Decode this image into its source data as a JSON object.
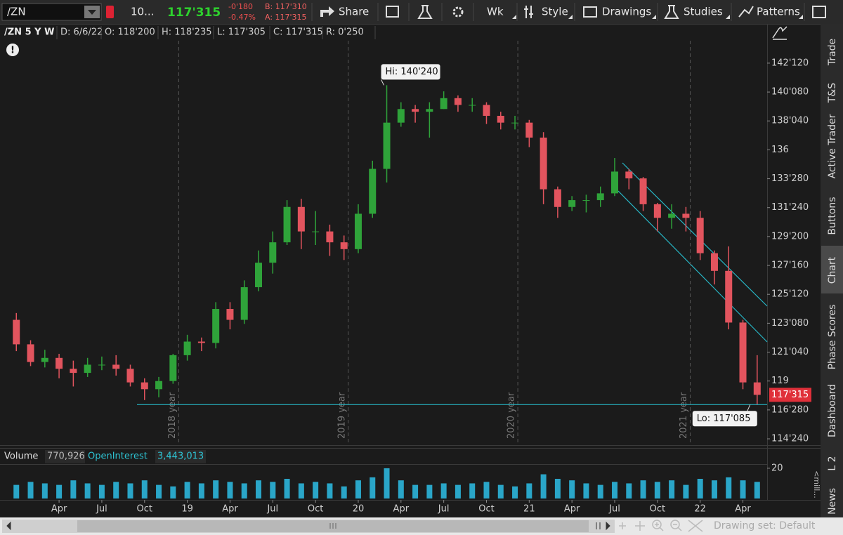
{
  "toolbar": {
    "symbol": "/ZN",
    "qty": "10...",
    "last": "117'315",
    "change": "-0'180",
    "change_pct": "-0.47%",
    "bid": "B: 117'310",
    "ask": "A: 117'315",
    "share": "Share",
    "period": "Wk",
    "style": "Style",
    "drawings": "Drawings",
    "studies": "Studies",
    "patterns": "Patterns"
  },
  "info": {
    "title": "/ZN 5 Y W",
    "date": "D: 6/6/22",
    "open": "O: 118'200",
    "high": "H: 118'235",
    "low": "L: 117'305",
    "close": "C: 117'315",
    "range": "R: 0'250"
  },
  "side_tabs": [
    "Trade",
    "T&S",
    "Active Trader",
    "Buttons",
    "Chart",
    "Phase Scores",
    "Dashboard",
    "L 2",
    "News"
  ],
  "footer": {
    "drawing_set": "Drawing set: Default"
  },
  "chart_data": [
    {
      "type": "candlestick",
      "x": [
        0,
        1,
        2,
        3,
        4,
        5,
        6,
        7,
        8,
        9,
        10,
        11,
        12,
        13,
        14,
        15,
        16,
        17,
        18,
        19,
        20,
        21,
        22,
        23,
        24,
        25,
        26,
        27,
        28,
        29,
        30,
        31,
        32,
        33,
        34,
        35,
        36,
        37,
        38,
        39,
        40,
        41,
        42,
        43,
        44,
        45,
        46,
        47,
        48,
        49,
        50,
        51,
        52
      ],
      "open": [
        123.5,
        121.7,
        120.4,
        120.7,
        119.9,
        119.6,
        120.2,
        120.2,
        119.9,
        118.9,
        118.4,
        119.0,
        120.9,
        121.9,
        121.8,
        124.3,
        123.5,
        125.9,
        127.7,
        129.2,
        131.8,
        130.0,
        130.0,
        129.2,
        128.7,
        131.3,
        134.6,
        138.0,
        139.0,
        138.8,
        139.0,
        139.8,
        139.3,
        139.3,
        138.5,
        138.0,
        138.0,
        136.9,
        133.1,
        131.8,
        132.3,
        132.3,
        132.8,
        134.4,
        133.9,
        132.0,
        131.0,
        131.3,
        131.0,
        128.4,
        127.1,
        123.3,
        118.9
      ],
      "high": [
        124.0,
        122.0,
        121.3,
        121.0,
        120.5,
        120.7,
        120.8,
        120.9,
        120.2,
        119.2,
        119.3,
        121.0,
        122.4,
        122.2,
        124.8,
        124.8,
        126.4,
        128.6,
        130.0,
        132.3,
        132.4,
        131.5,
        130.5,
        129.7,
        132.0,
        135.2,
        140.75,
        139.5,
        139.3,
        139.5,
        140.3,
        140.0,
        139.8,
        139.5,
        138.8,
        138.5,
        138.2,
        137.3,
        133.3,
        132.6,
        132.7,
        133.3,
        135.4,
        134.6,
        134.0,
        132.1,
        132.0,
        131.8,
        131.5,
        128.6,
        128.9,
        123.5,
        120.9
      ],
      "low": [
        121.2,
        120.1,
        120.0,
        119.2,
        118.6,
        119.3,
        119.8,
        119.4,
        118.6,
        117.6,
        117.8,
        118.8,
        120.5,
        121.2,
        121.4,
        122.8,
        123.2,
        125.6,
        126.9,
        129.0,
        128.7,
        129.0,
        128.2,
        127.9,
        128.4,
        131.0,
        133.6,
        137.7,
        138.0,
        136.9,
        139.0,
        138.8,
        138.8,
        137.9,
        137.5,
        137.5,
        136.2,
        132.0,
        131.0,
        131.5,
        131.4,
        131.8,
        132.6,
        133.1,
        131.5,
        130.0,
        130.2,
        130.0,
        127.9,
        126.1,
        122.8,
        118.4,
        117.265625
      ],
      "close": [
        121.7,
        120.4,
        120.7,
        119.9,
        119.6,
        120.2,
        120.2,
        119.9,
        118.9,
        118.4,
        119.0,
        120.9,
        121.9,
        121.8,
        124.3,
        123.5,
        125.9,
        127.7,
        129.2,
        131.8,
        130.0,
        130.0,
        129.2,
        128.7,
        131.3,
        134.6,
        138.0,
        139.0,
        138.8,
        139.0,
        139.8,
        139.3,
        139.3,
        138.5,
        138.0,
        138.0,
        136.9,
        133.1,
        131.8,
        132.3,
        132.3,
        132.8,
        134.4,
        133.9,
        132.0,
        131.0,
        131.3,
        131.0,
        128.4,
        127.1,
        123.3,
        118.9,
        117.984375
      ],
      "up_color": "#2fa33a",
      "down_color": "#e2545e",
      "xlim": [
        -0.9,
        52.7
      ],
      "xticks": [
        {
          "value": 3,
          "label": "Apr"
        },
        {
          "value": 6,
          "label": "Jul"
        },
        {
          "value": 9,
          "label": "Oct"
        },
        {
          "value": 12,
          "label": "19"
        },
        {
          "value": 15,
          "label": "Apr"
        },
        {
          "value": 18,
          "label": "Jul"
        },
        {
          "value": 21,
          "label": "Oct"
        },
        {
          "value": 24,
          "label": "20"
        },
        {
          "value": 27,
          "label": "Apr"
        },
        {
          "value": 30,
          "label": "Jul"
        },
        {
          "value": 33,
          "label": "Oct"
        },
        {
          "value": 36,
          "label": "21"
        },
        {
          "value": 39,
          "label": "Apr"
        },
        {
          "value": 42,
          "label": "Jul"
        },
        {
          "value": 45,
          "label": "Oct"
        },
        {
          "value": 48,
          "label": "22"
        },
        {
          "value": 51,
          "label": "Apr"
        }
      ],
      "ylim": [
        114.39,
        145.21
      ],
      "yticks": [
        {
          "value": 142.375,
          "label": "142'120"
        },
        {
          "value": 140.25,
          "label": "140'080"
        },
        {
          "value": 138.125,
          "label": "138'040"
        },
        136,
        {
          "value": 133.875,
          "label": "133'280"
        },
        {
          "value": 131.75,
          "label": "131'240"
        },
        {
          "value": 129.625,
          "label": "129'200"
        },
        {
          "value": 127.5,
          "label": "127'160"
        },
        {
          "value": 125.375,
          "label": "125'120"
        },
        {
          "value": 123.25,
          "label": "123'080"
        },
        {
          "value": 121.125,
          "label": "121'040"
        },
        119,
        {
          "value": 116.875,
          "label": "116'280"
        },
        {
          "value": 114.75,
          "label": "114'240"
        }
      ],
      "grid": false,
      "year_markers": [
        {
          "value": 11.4,
          "label": "2018 year"
        },
        {
          "value": 23.3,
          "label": "2019 year"
        },
        {
          "value": 35.2,
          "label": "2020 year"
        },
        {
          "value": 47.3,
          "label": "2021 year"
        }
      ],
      "high_marker": {
        "x": 26,
        "value": 140.75,
        "label": "Hi: 140'240"
      },
      "low_marker": {
        "x": 52,
        "value": 117.265625,
        "label": "Lo: 117'085"
      },
      "last_price": {
        "value": 117.984375,
        "label": "117'315"
      }
    },
    {
      "type": "bar",
      "title": "Volume",
      "total": "770,926",
      "oi_title": "OpenInterest",
      "oi_total": "3,443,013",
      "unit": "<mill...",
      "values": [
        9,
        11,
        10,
        9,
        12,
        10,
        9,
        11,
        10,
        12,
        9,
        8,
        11,
        10,
        12,
        11,
        10,
        12,
        11,
        13,
        10,
        11,
        10,
        8,
        12,
        14,
        20,
        12,
        9,
        9,
        10,
        9,
        10,
        11,
        9,
        8,
        10,
        16,
        13,
        12,
        10,
        9,
        11,
        10,
        12,
        11,
        12,
        9,
        13,
        12,
        14,
        12,
        11
      ],
      "color": "#2aa6c8",
      "ylim": [
        0,
        32.5
      ],
      "yticks": [
        20
      ]
    }
  ]
}
